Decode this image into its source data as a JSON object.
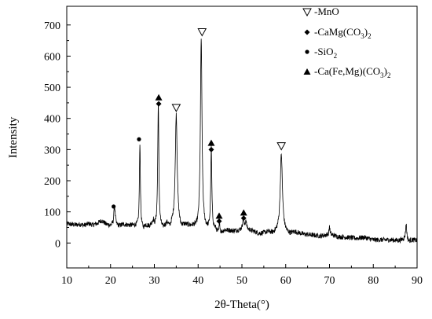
{
  "chart_data": {
    "type": "line",
    "xlabel": "2θ-Theta(°)",
    "ylabel": "Intensity",
    "xlim": [
      10,
      90
    ],
    "ylim": [
      -80,
      760
    ],
    "x_ticks": [
      10,
      20,
      30,
      40,
      50,
      60,
      70,
      80,
      90
    ],
    "y_ticks": [
      0,
      100,
      200,
      300,
      400,
      500,
      600,
      700
    ],
    "grid": false,
    "legend_position": "top-right",
    "series": [
      {
        "color": "#000000",
        "baseline": [
          [
            10,
            62
          ],
          [
            11,
            60
          ],
          [
            12,
            58
          ],
          [
            13,
            60
          ],
          [
            14,
            57
          ],
          [
            15,
            62
          ],
          [
            16,
            58
          ],
          [
            17,
            63
          ],
          [
            18,
            72
          ],
          [
            19,
            60
          ],
          [
            20,
            56
          ],
          [
            20.6,
            60
          ],
          [
            21,
            80
          ],
          [
            21.3,
            58
          ],
          [
            22,
            55
          ],
          [
            23,
            60
          ],
          [
            24,
            57
          ],
          [
            25,
            56
          ],
          [
            26,
            55
          ],
          [
            27.5,
            45
          ],
          [
            28,
            55
          ],
          [
            29,
            53
          ],
          [
            29.8,
            70
          ],
          [
            30,
            55
          ],
          [
            32,
            45
          ],
          [
            33,
            62
          ],
          [
            33.5,
            45
          ],
          [
            34,
            58
          ],
          [
            35,
            72
          ],
          [
            36,
            45
          ],
          [
            37,
            55
          ],
          [
            38,
            52
          ],
          [
            39,
            50
          ],
          [
            40,
            40
          ],
          [
            42,
            40
          ],
          [
            43,
            40
          ],
          [
            44,
            42
          ],
          [
            44.5,
            30
          ],
          [
            45,
            28
          ],
          [
            46,
            40
          ],
          [
            47,
            40
          ],
          [
            48,
            38
          ],
          [
            49,
            40
          ],
          [
            50,
            42
          ],
          [
            51,
            45
          ],
          [
            52,
            40
          ],
          [
            53,
            35
          ],
          [
            54,
            30
          ],
          [
            55,
            32
          ],
          [
            56,
            35
          ],
          [
            57,
            30
          ],
          [
            58,
            35
          ],
          [
            60,
            32
          ],
          [
            61,
            28
          ],
          [
            62,
            35
          ],
          [
            64,
            28
          ],
          [
            66,
            25
          ],
          [
            68,
            22
          ],
          [
            70,
            28
          ],
          [
            72,
            20
          ],
          [
            74,
            18
          ],
          [
            76,
            15
          ],
          [
            78,
            18
          ],
          [
            80,
            10
          ],
          [
            82,
            10
          ],
          [
            84,
            10
          ],
          [
            86,
            8
          ],
          [
            87.5,
            15
          ],
          [
            88,
            5
          ],
          [
            89,
            10
          ],
          [
            90,
            8
          ]
        ],
        "peaks": [
          {
            "x": 20.9,
            "height": 118,
            "width": 0.15
          },
          {
            "x": 26.7,
            "height": 322,
            "width": 0.13
          },
          {
            "x": 30.9,
            "height": 450,
            "width": 0.15
          },
          {
            "x": 35.0,
            "height": 415,
            "width": 0.25
          },
          {
            "x": 40.7,
            "height": 655,
            "width": 0.22
          },
          {
            "x": 43.0,
            "height": 300,
            "width": 0.15
          },
          {
            "x": 44.9,
            "height": 65,
            "width": 0.12
          },
          {
            "x": 50.3,
            "height": 78,
            "width": 0.18
          },
          {
            "x": 50.9,
            "height": 72,
            "width": 0.15
          },
          {
            "x": 59.0,
            "height": 285,
            "width": 0.3
          },
          {
            "x": 70.0,
            "height": 55,
            "width": 0.1
          },
          {
            "x": 87.5,
            "height": 60,
            "width": 0.15
          }
        ]
      }
    ],
    "annotations": [
      {
        "phase": "MnO",
        "symbol": "triangle-down-open",
        "x": 35.0,
        "y": 435
      },
      {
        "phase": "MnO",
        "symbol": "triangle-down-open",
        "x": 40.9,
        "y": 678
      },
      {
        "phase": "MnO",
        "symbol": "triangle-down-open",
        "x": 59.0,
        "y": 312
      },
      {
        "phase": "CaMg(CO3)2",
        "symbol": "diamond",
        "x": 31.0,
        "y": 447
      },
      {
        "phase": "Ca(Fe,Mg)(CO3)2",
        "symbol": "triangle-up",
        "x": 31.0,
        "y": 468
      },
      {
        "phase": "CaMg(CO3)2",
        "symbol": "diamond",
        "x": 43.0,
        "y": 300
      },
      {
        "phase": "Ca(Fe,Mg)(CO3)2",
        "symbol": "triangle-up",
        "x": 43.0,
        "y": 322
      },
      {
        "phase": "CaMg(CO3)2",
        "symbol": "diamond",
        "x": 44.8,
        "y": 70
      },
      {
        "phase": "Ca(Fe,Mg)(CO3)2",
        "symbol": "triangle-up",
        "x": 44.8,
        "y": 88
      },
      {
        "phase": "CaMg(CO3)2",
        "symbol": "diamond",
        "x": 50.4,
        "y": 80
      },
      {
        "phase": "Ca(Fe,Mg)(CO3)2",
        "symbol": "triangle-up",
        "x": 50.4,
        "y": 98
      },
      {
        "phase": "SiO2",
        "symbol": "dot",
        "x": 20.7,
        "y": 117
      },
      {
        "phase": "SiO2",
        "symbol": "dot",
        "x": 26.5,
        "y": 333
      }
    ],
    "legend": [
      {
        "symbol": "triangle-down-open",
        "text": "-MnO"
      },
      {
        "symbol": "diamond",
        "text": "-CaMg(CO",
        "sub1": "3",
        "mid": ")",
        "sub2": "2"
      },
      {
        "symbol": "dot",
        "text": "-SiO",
        "sub1": "2",
        "mid": "",
        "sub2": ""
      },
      {
        "symbol": "triangle-up",
        "text": "-Ca(Fe,Mg)(CO",
        "sub1": "3",
        "mid": ")",
        "sub2": "2"
      }
    ]
  }
}
